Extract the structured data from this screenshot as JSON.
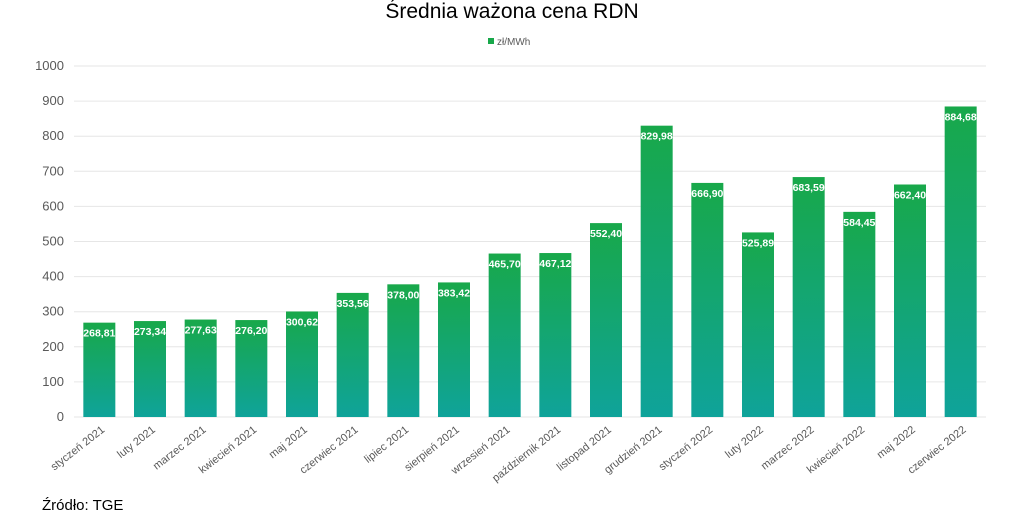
{
  "chart_data": {
    "type": "bar",
    "title": "Średnia ważona cena RDN",
    "series": [
      {
        "name": "zł/MWh",
        "values": [
          268.81,
          273.34,
          277.63,
          276.2,
          300.62,
          353.56,
          378.0,
          383.42,
          465.7,
          467.12,
          552.4,
          829.98,
          666.9,
          525.89,
          683.59,
          584.45,
          662.4,
          884.68
        ],
        "labels": [
          "268,81",
          "273,34",
          "277,63",
          "276,20",
          "300,62",
          "353,56",
          "378,00",
          "383,42",
          "465,70",
          "467,12",
          "552,40",
          "829,98",
          "666,90",
          "525,89",
          "683,59",
          "584,45",
          "662,40",
          "884,68"
        ]
      }
    ],
    "categories": [
      "styczeń 2021",
      "luty 2021",
      "marzec 2021",
      "kwiecień 2021",
      "maj 2021",
      "czerwiec 2021",
      "lipiec 2021",
      "sierpień 2021",
      "wrzesień 2021",
      "październik 2021",
      "listopad 2021",
      "grudzień 2021",
      "styczeń 2022",
      "luty 2022",
      "marzec 2022",
      "kwiecień 2022",
      "maj 2022",
      "czerwiec 2022"
    ],
    "ylim": [
      0,
      1000
    ],
    "yticks": [
      "0",
      "100",
      "200",
      "300",
      "400",
      "500",
      "600",
      "700",
      "800",
      "900",
      "1000"
    ],
    "legend_position": "top-center",
    "grid": true,
    "colors": {
      "bar_top": "#18a84a",
      "bar_bottom": "#0fa39a",
      "grid": "#e6e6e6",
      "axis_text": "#595959"
    }
  },
  "source": "Źródło: TGE"
}
